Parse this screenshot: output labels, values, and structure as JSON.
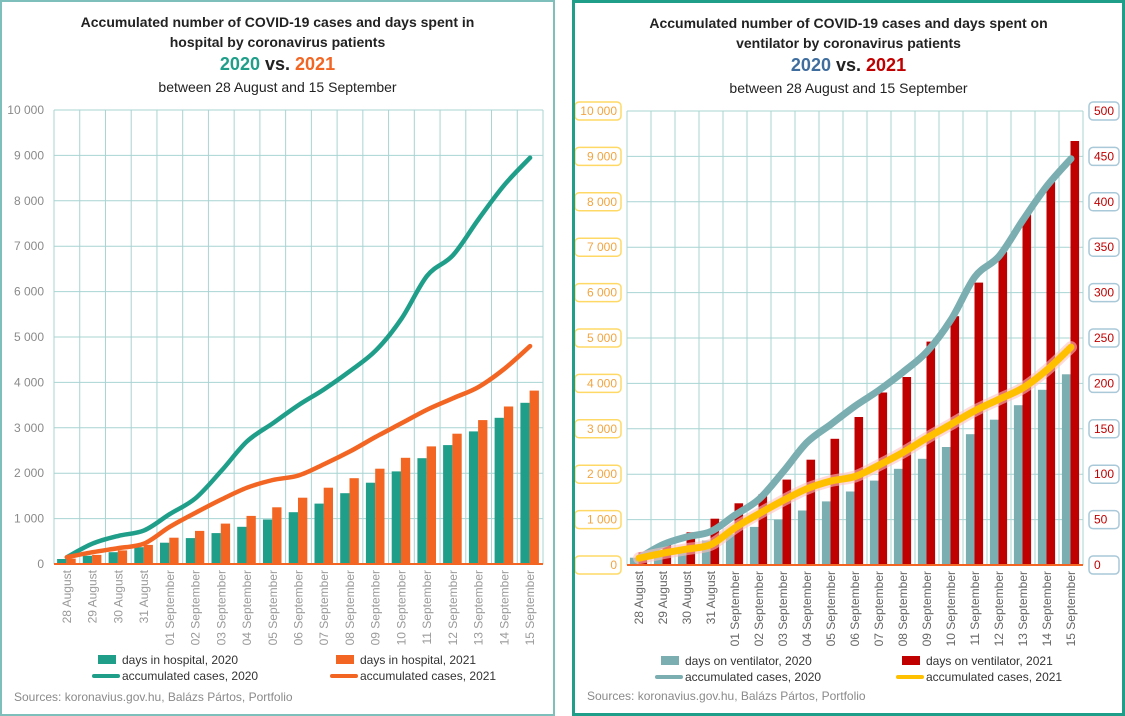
{
  "left": {
    "title_line1": "Accumulated number of COVID-19 cases and days spent in",
    "title_line2": "hospital by coronavirus patients",
    "year_a": "2020",
    "vs": "vs.",
    "year_b": "2021",
    "period": "between 28 August and 15 September",
    "sources": "Sources: koronavius.gov.hu, Balázs Pártos, Portfolio"
  },
  "right": {
    "title_line1": "Accumulated number of COVID-19 cases and days spent on",
    "title_line2": "ventilator by coronavirus patients",
    "year_a": "2020",
    "vs": "vs.",
    "year_b": "2021",
    "period": "between 28 August and 15 September",
    "sources": "Sources: koronavius.gov.hu, Balázs Pártos, Portfolio"
  },
  "colors": {
    "teal": "#1f9e8a",
    "orange": "#f26522",
    "greyteal": "#7aaeb1",
    "darkred": "#c00000",
    "yellow": "#ffc000",
    "yearblue": "#3f6d9e",
    "grid": "#a8d4d2"
  },
  "chart_data": [
    {
      "type": "bar",
      "categories": [
        "28 August",
        "29 August",
        "30 August",
        "31 August",
        "01 September",
        "02 September",
        "03 September",
        "04 September",
        "05 September",
        "06 September",
        "07 September",
        "08 September",
        "09 September",
        "10 September",
        "11 September",
        "12 September",
        "13 September",
        "14 September",
        "15 September"
      ],
      "ylim": [
        0,
        10000
      ],
      "yticks": [
        "0",
        "1 000",
        "2 000",
        "3 000",
        "4 000",
        "5 000",
        "6 000",
        "7 000",
        "8 000",
        "9 000",
        "10 000"
      ],
      "grid": true,
      "legend_position": "bottom",
      "series": [
        {
          "name": "days in hospital, 2020",
          "kind": "bar",
          "color": "#1f9e8a",
          "values": [
            110,
            180,
            260,
            370,
            470,
            570,
            680,
            820,
            980,
            1140,
            1330,
            1560,
            1790,
            2040,
            2330,
            2620,
            2920,
            3220,
            3550
          ]
        },
        {
          "name": "days in hospital, 2021",
          "kind": "bar",
          "color": "#f26522",
          "values": [
            120,
            200,
            300,
            420,
            580,
            730,
            890,
            1060,
            1250,
            1460,
            1680,
            1890,
            2100,
            2340,
            2590,
            2870,
            3170,
            3470,
            3820
          ]
        },
        {
          "name": "accumulated cases, 2020",
          "kind": "line",
          "color": "#1f9e8a",
          "values": [
            150,
            450,
            620,
            740,
            1100,
            1450,
            2050,
            2700,
            3100,
            3500,
            3850,
            4250,
            4700,
            5400,
            6350,
            6800,
            7600,
            8350,
            8950
          ]
        },
        {
          "name": "accumulated cases, 2021",
          "kind": "line",
          "color": "#f26522",
          "values": [
            150,
            260,
            350,
            450,
            820,
            1130,
            1420,
            1680,
            1850,
            1950,
            2200,
            2480,
            2800,
            3100,
            3400,
            3650,
            3900,
            4300,
            4800
          ]
        }
      ]
    },
    {
      "type": "bar",
      "categories": [
        "28 August",
        "29 August",
        "30 August",
        "31 August",
        "01 September",
        "02 September",
        "03 September",
        "04 September",
        "05 September",
        "06 September",
        "07 September",
        "08 September",
        "09 September",
        "10 September",
        "11 September",
        "12 September",
        "13 September",
        "14 September",
        "15 September"
      ],
      "ylim": [
        0,
        10000
      ],
      "y2lim": [
        0,
        500
      ],
      "yticks": [
        "0",
        "1 000",
        "2 000",
        "3 000",
        "4 000",
        "5 000",
        "6 000",
        "7 000",
        "8 000",
        "9 000",
        "10 000"
      ],
      "y2ticks": [
        "0",
        "50",
        "100",
        "150",
        "200",
        "250",
        "300",
        "350",
        "400",
        "450",
        "500"
      ],
      "grid": true,
      "legend_position": "bottom",
      "series": [
        {
          "name": "days on ventilator, 2020",
          "kind": "bar",
          "axis": "right",
          "color": "#7aaeb1",
          "values": [
            8,
            14,
            20,
            27,
            34,
            42,
            50,
            60,
            70,
            81,
            93,
            106,
            117,
            130,
            144,
            160,
            176,
            193,
            210
          ]
        },
        {
          "name": "days on ventilator, 2021",
          "kind": "bar",
          "axis": "right",
          "color": "#c00000",
          "values": [
            14,
            24,
            36,
            51,
            68,
            78,
            94,
            116,
            139,
            163,
            190,
            207,
            246,
            274,
            311,
            345,
            386,
            422,
            467
          ]
        },
        {
          "name": "accumulated cases, 2020",
          "kind": "line",
          "axis": "left",
          "color": "#7aaeb1",
          "values": [
            150,
            450,
            620,
            740,
            1100,
            1450,
            2050,
            2700,
            3100,
            3500,
            3850,
            4250,
            4700,
            5400,
            6350,
            6800,
            7600,
            8350,
            8950
          ]
        },
        {
          "name": "accumulated cases, 2021",
          "kind": "line",
          "axis": "left",
          "color": "#ffc000",
          "values": [
            150,
            260,
            350,
            450,
            820,
            1130,
            1420,
            1680,
            1850,
            1950,
            2200,
            2480,
            2800,
            3100,
            3400,
            3650,
            3900,
            4300,
            4800
          ]
        }
      ]
    }
  ]
}
